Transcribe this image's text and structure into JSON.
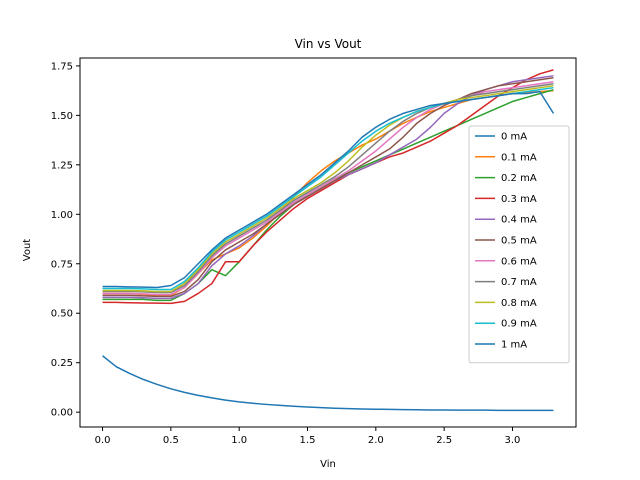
{
  "chart_data": {
    "type": "line",
    "title": "Vin vs Vout",
    "xlabel": "Vin",
    "ylabel": "Vout",
    "xlim": [
      -0.165,
      3.465
    ],
    "ylim": [
      -0.075,
      1.79
    ],
    "xticks": [
      0.0,
      0.5,
      1.0,
      1.5,
      2.0,
      2.5,
      3.0
    ],
    "yticks": [
      0.0,
      0.25,
      0.5,
      0.75,
      1.0,
      1.25,
      1.5,
      1.75
    ],
    "xtick_labels": [
      "0.0",
      "0.5",
      "1.0",
      "1.5",
      "2.0",
      "2.5",
      "3.0"
    ],
    "ytick_labels": [
      "0.00",
      "0.25",
      "0.50",
      "0.75",
      "1.00",
      "1.25",
      "1.50",
      "1.75"
    ],
    "grid": false,
    "legend_position": "center-right",
    "x": [
      0.0,
      0.1,
      0.2,
      0.3,
      0.4,
      0.5,
      0.6,
      0.7,
      0.8,
      0.9,
      1.0,
      1.1,
      1.2,
      1.3,
      1.4,
      1.5,
      1.6,
      1.7,
      1.8,
      1.9,
      2.0,
      2.1,
      2.2,
      2.3,
      2.4,
      2.5,
      2.6,
      2.7,
      2.8,
      2.9,
      3.0,
      3.1,
      3.2,
      3.3
    ],
    "series": [
      {
        "name": "0 mA",
        "color": "#1f77b4",
        "values": [
          0.285,
          0.23,
          0.195,
          0.165,
          0.14,
          0.118,
          0.1,
          0.085,
          0.072,
          0.061,
          0.052,
          0.045,
          0.039,
          0.034,
          0.03,
          0.026,
          0.023,
          0.02,
          0.018,
          0.016,
          0.015,
          0.014,
          0.013,
          0.012,
          0.011,
          0.011,
          0.01,
          0.01,
          0.01,
          0.009,
          0.009,
          0.009,
          0.009,
          0.009
        ]
      },
      {
        "name": "0.1 mA",
        "color": "#ff7f0e",
        "values": [
          0.6,
          0.6,
          0.6,
          0.595,
          0.59,
          0.59,
          0.63,
          0.7,
          0.77,
          0.8,
          0.83,
          0.88,
          0.94,
          1.01,
          1.09,
          1.16,
          1.22,
          1.27,
          1.31,
          1.35,
          1.38,
          1.42,
          1.46,
          1.49,
          1.52,
          1.54,
          1.56,
          1.58,
          1.59,
          1.6,
          1.61,
          1.615,
          1.62,
          1.625
        ]
      },
      {
        "name": "0.2 mA",
        "color": "#2ca02c",
        "values": [
          0.57,
          0.57,
          0.57,
          0.57,
          0.565,
          0.565,
          0.6,
          0.65,
          0.72,
          0.69,
          0.76,
          0.84,
          0.92,
          0.99,
          1.05,
          1.1,
          1.14,
          1.18,
          1.21,
          1.24,
          1.27,
          1.3,
          1.33,
          1.36,
          1.39,
          1.42,
          1.45,
          1.48,
          1.51,
          1.54,
          1.57,
          1.59,
          1.61,
          1.63
        ]
      },
      {
        "name": "0.3 mA",
        "color": "#d62728",
        "values": [
          0.555,
          0.555,
          0.553,
          0.552,
          0.551,
          0.55,
          0.56,
          0.6,
          0.65,
          0.76,
          0.76,
          0.84,
          0.91,
          0.97,
          1.03,
          1.08,
          1.12,
          1.16,
          1.2,
          1.23,
          1.26,
          1.29,
          1.31,
          1.34,
          1.37,
          1.41,
          1.45,
          1.5,
          1.55,
          1.6,
          1.64,
          1.68,
          1.71,
          1.73
        ]
      },
      {
        "name": "0.4 mA",
        "color": "#9467bd",
        "values": [
          0.58,
          0.58,
          0.58,
          0.578,
          0.575,
          0.575,
          0.6,
          0.65,
          0.74,
          0.8,
          0.84,
          0.89,
          0.95,
          1.0,
          1.05,
          1.09,
          1.13,
          1.17,
          1.2,
          1.23,
          1.26,
          1.3,
          1.34,
          1.38,
          1.44,
          1.51,
          1.56,
          1.6,
          1.63,
          1.65,
          1.67,
          1.68,
          1.69,
          1.7
        ]
      },
      {
        "name": "0.5 mA",
        "color": "#8c564b",
        "values": [
          0.59,
          0.59,
          0.59,
          0.588,
          0.585,
          0.585,
          0.61,
          0.67,
          0.76,
          0.82,
          0.86,
          0.9,
          0.95,
          1.0,
          1.05,
          1.09,
          1.13,
          1.17,
          1.21,
          1.25,
          1.29,
          1.33,
          1.39,
          1.46,
          1.51,
          1.55,
          1.58,
          1.61,
          1.63,
          1.65,
          1.66,
          1.67,
          1.68,
          1.69
        ]
      },
      {
        "name": "0.6 mA",
        "color": "#e377c2",
        "values": [
          0.6,
          0.6,
          0.6,
          0.598,
          0.595,
          0.595,
          0.63,
          0.7,
          0.78,
          0.84,
          0.88,
          0.92,
          0.96,
          1.01,
          1.06,
          1.1,
          1.14,
          1.18,
          1.22,
          1.27,
          1.32,
          1.38,
          1.44,
          1.49,
          1.53,
          1.56,
          1.58,
          1.6,
          1.62,
          1.63,
          1.64,
          1.65,
          1.66,
          1.67
        ]
      },
      {
        "name": "0.7 mA",
        "color": "#7f7f7f",
        "values": [
          0.61,
          0.61,
          0.61,
          0.608,
          0.605,
          0.605,
          0.64,
          0.71,
          0.79,
          0.85,
          0.89,
          0.93,
          0.97,
          1.02,
          1.07,
          1.11,
          1.15,
          1.19,
          1.24,
          1.3,
          1.36,
          1.42,
          1.47,
          1.51,
          1.54,
          1.56,
          1.58,
          1.6,
          1.61,
          1.62,
          1.63,
          1.64,
          1.65,
          1.66
        ]
      },
      {
        "name": "0.8 mA",
        "color": "#bcbd22",
        "values": [
          0.615,
          0.615,
          0.615,
          0.613,
          0.61,
          0.61,
          0.65,
          0.72,
          0.8,
          0.86,
          0.9,
          0.94,
          0.98,
          1.03,
          1.08,
          1.12,
          1.16,
          1.21,
          1.27,
          1.34,
          1.4,
          1.45,
          1.49,
          1.52,
          1.54,
          1.56,
          1.58,
          1.59,
          1.6,
          1.61,
          1.62,
          1.63,
          1.64,
          1.65
        ]
      },
      {
        "name": "0.9 mA",
        "color": "#17becf",
        "values": [
          0.625,
          0.625,
          0.625,
          0.623,
          0.62,
          0.62,
          0.66,
          0.73,
          0.81,
          0.87,
          0.91,
          0.95,
          0.99,
          1.04,
          1.09,
          1.14,
          1.19,
          1.25,
          1.31,
          1.37,
          1.42,
          1.46,
          1.49,
          1.52,
          1.54,
          1.56,
          1.57,
          1.58,
          1.59,
          1.6,
          1.61,
          1.62,
          1.63,
          1.64
        ]
      },
      {
        "name": "1 mA",
        "color": "#1f77b4",
        "values": [
          0.635,
          0.635,
          0.633,
          0.632,
          0.63,
          0.64,
          0.68,
          0.75,
          0.82,
          0.88,
          0.92,
          0.96,
          1.0,
          1.05,
          1.1,
          1.15,
          1.2,
          1.26,
          1.32,
          1.39,
          1.44,
          1.48,
          1.51,
          1.53,
          1.55,
          1.56,
          1.57,
          1.58,
          1.59,
          1.6,
          1.61,
          1.61,
          1.62,
          1.51
        ]
      }
    ]
  }
}
